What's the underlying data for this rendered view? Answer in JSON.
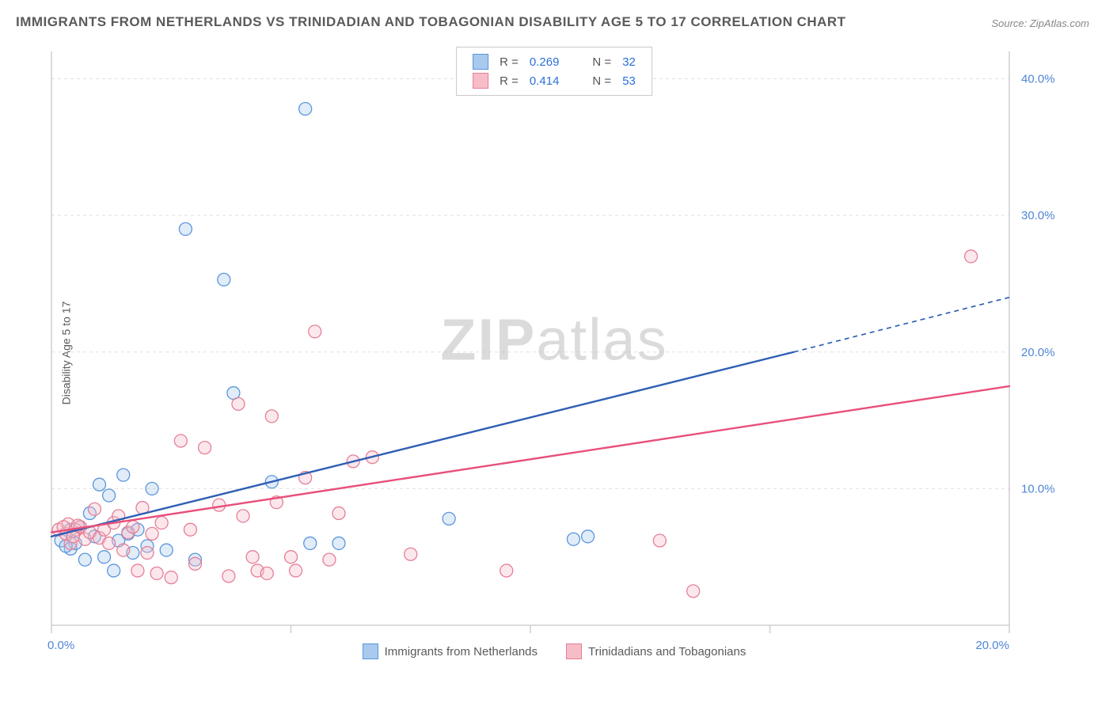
{
  "title": "IMMIGRANTS FROM NETHERLANDS VS TRINIDADIAN AND TOBAGONIAN DISABILITY AGE 5 TO 17 CORRELATION CHART",
  "source": "Source: ZipAtlas.com",
  "ylabel": "Disability Age 5 to 17",
  "watermark_bold": "ZIP",
  "watermark_rest": "atlas",
  "chart": {
    "type": "scatter",
    "x_range": [
      0,
      20
    ],
    "y_range": [
      0,
      42
    ],
    "x_ticks": [
      0,
      5,
      10,
      15,
      20
    ],
    "x_tick_labels": [
      "0.0%",
      "",
      "",
      "",
      "20.0%"
    ],
    "y_ticks": [
      10,
      20,
      30,
      40
    ],
    "y_tick_labels": [
      "10.0%",
      "20.0%",
      "30.0%",
      "40.0%"
    ],
    "grid_color": "#e0e0e0",
    "axis_color": "#cfcfcf",
    "tick_font_color": "#4f86d8",
    "tick_font_size": 15,
    "background": "#ffffff",
    "marker_radius": 8,
    "marker_stroke_width": 1.3,
    "marker_fill_opacity": 0.35,
    "series": [
      {
        "name": "Immigrants from Netherlands",
        "color_fill": "#a9c9ef",
        "color_stroke": "#5a96db",
        "R": "0.269",
        "N": "32",
        "trend": {
          "x1": 0,
          "y1": 6.5,
          "x2": 15.5,
          "y2": 20.0,
          "x2_dash": 20,
          "y2_dash": 24.0,
          "color": "#2f5fb5",
          "width": 2.4
        },
        "points": [
          [
            0.2,
            6.2
          ],
          [
            0.4,
            7.0
          ],
          [
            0.4,
            5.6
          ],
          [
            0.6,
            7.2
          ],
          [
            0.7,
            4.8
          ],
          [
            0.8,
            8.2
          ],
          [
            0.9,
            6.5
          ],
          [
            1.0,
            10.3
          ],
          [
            1.1,
            5.0
          ],
          [
            1.2,
            9.5
          ],
          [
            1.3,
            4.0
          ],
          [
            1.5,
            11.0
          ],
          [
            1.6,
            6.7
          ],
          [
            1.7,
            5.3
          ],
          [
            1.8,
            7.0
          ],
          [
            2.0,
            5.8
          ],
          [
            2.1,
            10.0
          ],
          [
            2.4,
            5.5
          ],
          [
            2.8,
            29.0
          ],
          [
            3.0,
            4.8
          ],
          [
            3.6,
            25.3
          ],
          [
            3.8,
            17.0
          ],
          [
            4.6,
            10.5
          ],
          [
            5.3,
            37.8
          ],
          [
            5.4,
            6.0
          ],
          [
            6.0,
            6.0
          ],
          [
            8.3,
            7.8
          ],
          [
            10.9,
            6.3
          ],
          [
            11.2,
            6.5
          ],
          [
            0.5,
            6.0
          ],
          [
            0.3,
            5.8
          ],
          [
            1.4,
            6.2
          ]
        ]
      },
      {
        "name": "Trinidadians and Tobagonians",
        "color_fill": "#f6bdc9",
        "color_stroke": "#e57f97",
        "R": "0.414",
        "N": "53",
        "trend": {
          "x1": 0,
          "y1": 6.8,
          "x2": 20,
          "y2": 17.5,
          "color": "#e84f7a",
          "width": 2.4
        },
        "points": [
          [
            0.15,
            7.0
          ],
          [
            0.3,
            6.7
          ],
          [
            0.35,
            7.4
          ],
          [
            0.4,
            6.0
          ],
          [
            0.5,
            7.0
          ],
          [
            0.6,
            7.2
          ],
          [
            0.7,
            6.3
          ],
          [
            0.8,
            6.8
          ],
          [
            0.9,
            8.5
          ],
          [
            1.0,
            6.4
          ],
          [
            1.1,
            7.0
          ],
          [
            1.2,
            6.0
          ],
          [
            1.3,
            7.5
          ],
          [
            1.4,
            8.0
          ],
          [
            1.5,
            5.5
          ],
          [
            1.6,
            6.8
          ],
          [
            1.7,
            7.2
          ],
          [
            1.8,
            4.0
          ],
          [
            1.9,
            8.6
          ],
          [
            2.0,
            5.3
          ],
          [
            2.1,
            6.7
          ],
          [
            2.2,
            3.8
          ],
          [
            2.3,
            7.5
          ],
          [
            2.5,
            3.5
          ],
          [
            2.7,
            13.5
          ],
          [
            2.9,
            7.0
          ],
          [
            3.0,
            4.5
          ],
          [
            3.2,
            13.0
          ],
          [
            3.5,
            8.8
          ],
          [
            3.7,
            3.6
          ],
          [
            3.9,
            16.2
          ],
          [
            4.0,
            8.0
          ],
          [
            4.2,
            5.0
          ],
          [
            4.3,
            4.0
          ],
          [
            4.5,
            3.8
          ],
          [
            4.6,
            15.3
          ],
          [
            4.7,
            9.0
          ],
          [
            5.0,
            5.0
          ],
          [
            5.1,
            4.0
          ],
          [
            5.3,
            10.8
          ],
          [
            5.5,
            21.5
          ],
          [
            5.8,
            4.8
          ],
          [
            6.0,
            8.2
          ],
          [
            6.3,
            12.0
          ],
          [
            6.7,
            12.3
          ],
          [
            7.5,
            5.2
          ],
          [
            9.5,
            4.0
          ],
          [
            12.7,
            6.2
          ],
          [
            13.4,
            2.5
          ],
          [
            19.2,
            27.0
          ],
          [
            0.25,
            7.2
          ],
          [
            0.45,
            6.5
          ],
          [
            0.55,
            7.3
          ]
        ]
      }
    ]
  },
  "legend_top": {
    "r_prefix": "R =",
    "n_prefix": "N ="
  }
}
